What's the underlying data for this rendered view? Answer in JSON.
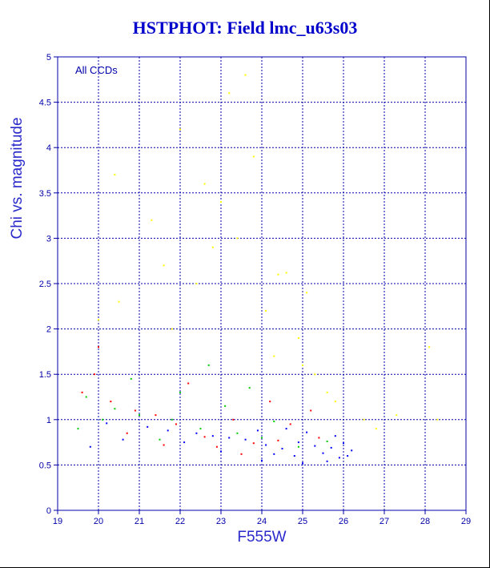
{
  "chart_data": {
    "type": "scatter",
    "title": "HSTPHOT: Field lmc_u63s03",
    "xlabel": "F555W",
    "ylabel": "Chi vs. magnitude",
    "annotation": "All CCDs",
    "xlim": [
      19,
      29
    ],
    "ylim": [
      0,
      5
    ],
    "x_ticks": [
      19,
      20,
      21,
      22,
      23,
      24,
      25,
      26,
      27,
      28,
      29
    ],
    "y_ticks": [
      0,
      0.5,
      1,
      1.5,
      2,
      2.5,
      3,
      3.5,
      4,
      4.5,
      5
    ],
    "x_tick_labels": [
      "19",
      "20",
      "21",
      "22",
      "23",
      "24",
      "25",
      "26",
      "27",
      "28",
      "29"
    ],
    "y_tick_labels": [
      "0",
      "0.5",
      "1",
      "1.5",
      "2",
      "2.5",
      "3",
      "3.5",
      "4",
      "4.5",
      "5"
    ],
    "grid": true,
    "series": [
      {
        "color": "#0000ff",
        "points": [
          [
            24.1,
            0.72
          ],
          [
            24.5,
            0.68
          ],
          [
            24.9,
            0.75
          ],
          [
            25.3,
            0.71
          ],
          [
            25.7,
            0.69
          ],
          [
            26.0,
            0.74
          ],
          [
            23.6,
            0.78
          ],
          [
            23.2,
            0.8
          ],
          [
            22.8,
            0.82
          ],
          [
            22.4,
            0.85
          ],
          [
            24.3,
            0.62
          ],
          [
            24.8,
            0.6
          ],
          [
            25.5,
            0.63
          ],
          [
            25.9,
            0.58
          ],
          [
            23.9,
            0.88
          ],
          [
            24.6,
            0.9
          ],
          [
            25.1,
            0.86
          ],
          [
            25.8,
            0.82
          ],
          [
            26.2,
            0.66
          ],
          [
            21.7,
            0.88
          ],
          [
            21.2,
            0.92
          ],
          [
            20.6,
            0.78
          ],
          [
            19.8,
            0.7
          ],
          [
            20.2,
            0.96
          ],
          [
            22.1,
            0.75
          ],
          [
            23.0,
            0.65
          ],
          [
            24.0,
            0.55
          ],
          [
            25.0,
            0.52
          ],
          [
            25.6,
            0.54
          ],
          [
            26.1,
            0.6
          ]
        ]
      },
      {
        "color": "#ff0000",
        "points": [
          [
            23.8,
            0.74
          ],
          [
            24.4,
            0.77
          ],
          [
            22.6,
            0.81
          ],
          [
            22.9,
            0.7
          ],
          [
            21.9,
            0.95
          ],
          [
            21.4,
            1.05
          ],
          [
            20.9,
            1.1
          ],
          [
            20.3,
            1.2
          ],
          [
            19.6,
            1.3
          ],
          [
            20.0,
            1.8
          ],
          [
            23.3,
            1.0
          ],
          [
            24.2,
            1.2
          ],
          [
            25.2,
            1.1
          ],
          [
            22.2,
            1.4
          ],
          [
            21.6,
            0.72
          ],
          [
            24.7,
            0.95
          ],
          [
            25.4,
            0.8
          ],
          [
            23.5,
            0.62
          ],
          [
            20.7,
            0.85
          ],
          [
            19.9,
            1.5
          ]
        ]
      },
      {
        "color": "#00cc00",
        "points": [
          [
            23.4,
            0.85
          ],
          [
            24.0,
            0.8
          ],
          [
            22.5,
            0.9
          ],
          [
            21.8,
            1.0
          ],
          [
            21.0,
            1.05
          ],
          [
            20.4,
            1.12
          ],
          [
            19.7,
            1.25
          ],
          [
            24.9,
            0.7
          ],
          [
            25.6,
            0.76
          ],
          [
            22.0,
            1.3
          ],
          [
            23.1,
            1.15
          ],
          [
            20.8,
            1.45
          ],
          [
            21.5,
            0.78
          ],
          [
            24.3,
            0.98
          ],
          [
            19.5,
            0.9
          ],
          [
            22.7,
            1.6
          ],
          [
            23.7,
            1.35
          ],
          [
            20.1,
            1.0
          ]
        ]
      },
      {
        "color": "#ffff00",
        "points": [
          [
            23.6,
            4.8
          ],
          [
            23.2,
            4.6
          ],
          [
            22.0,
            4.2
          ],
          [
            23.8,
            3.9
          ],
          [
            20.4,
            3.7
          ],
          [
            23.0,
            3.4
          ],
          [
            21.3,
            3.2
          ],
          [
            24.4,
            2.6
          ],
          [
            24.6,
            2.62
          ],
          [
            22.4,
            2.5
          ],
          [
            25.0,
            1.6
          ],
          [
            25.3,
            1.5
          ],
          [
            25.6,
            1.3
          ],
          [
            26.5,
            1.0
          ],
          [
            27.3,
            1.05
          ],
          [
            28.1,
            1.8
          ],
          [
            28.3,
            1.0
          ],
          [
            20.5,
            2.3
          ],
          [
            21.8,
            2.0
          ],
          [
            22.8,
            2.9
          ],
          [
            24.1,
            2.2
          ],
          [
            24.9,
            1.9
          ],
          [
            25.8,
            1.2
          ],
          [
            26.8,
            0.9
          ],
          [
            23.4,
            3.0
          ],
          [
            21.6,
            2.7
          ],
          [
            22.6,
            3.6
          ],
          [
            24.3,
            1.7
          ],
          [
            25.1,
            2.4
          ],
          [
            20.0,
            2.1
          ]
        ]
      }
    ]
  }
}
